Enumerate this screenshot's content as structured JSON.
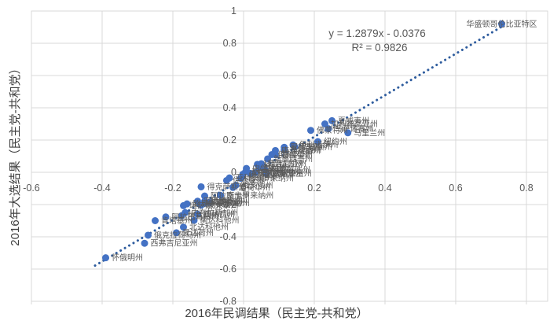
{
  "chart_data": {
    "type": "scatter",
    "title": "",
    "xlabel": "2016年民调结果（民主党-共和党）",
    "ylabel": "2016年大选结果（民主党-共和党）",
    "xlim": [
      -0.6,
      0.86
    ],
    "ylim": [
      -0.8,
      1.0
    ],
    "grid": true,
    "xticks": [
      "-0.6",
      "-0.4",
      "-0.2",
      "0",
      "0.2",
      "0.4",
      "0.6",
      "0.8"
    ],
    "yticks": [
      "1",
      "0.8",
      "0.6",
      "0.4",
      "0.2",
      "0",
      "-0.2",
      "-0.4",
      "-0.6",
      "-0.8"
    ],
    "trendline": {
      "style": "dotted",
      "slope": 1.2879,
      "intercept": -0.0376,
      "x_start": -0.42,
      "x_end": 0.732,
      "equation_label": "y = 1.2879x - 0.0376",
      "r2_label": "R² = 0.9826"
    },
    "series": [
      {
        "name": "states",
        "marker_color": "#4472C4",
        "points": [
          {
            "label": "华盛顿哥伦比亚特区",
            "x": 0.73,
            "y": 0.92,
            "label_position": "center"
          },
          {
            "label": "夏威夷州",
            "x": 0.25,
            "y": 0.32,
            "label_position": "right"
          },
          {
            "label": "加利福尼亚州",
            "x": 0.23,
            "y": 0.3,
            "label_position": "right"
          },
          {
            "label": "马萨诸塞州",
            "x": 0.24,
            "y": 0.27,
            "label_position": "right"
          },
          {
            "label": "佛蒙特州",
            "x": 0.19,
            "y": 0.26,
            "label_position": "right"
          },
          {
            "label": "马里兰州",
            "x": 0.295,
            "y": 0.245,
            "label_position": "right"
          },
          {
            "label": "纽约州",
            "x": 0.21,
            "y": 0.19,
            "label_position": "right"
          },
          {
            "label": "华盛顿州",
            "x": 0.145,
            "y": 0.157,
            "label_position": "right"
          },
          {
            "label": "伊利诺伊州",
            "x": 0.14,
            "y": 0.17,
            "label_position": "right"
          },
          {
            "label": "罗德岛州",
            "x": 0.115,
            "y": 0.155,
            "label_position": "right"
          },
          {
            "label": "新泽西州",
            "x": 0.115,
            "y": 0.14,
            "label_position": "right"
          },
          {
            "label": "康涅狄格州",
            "x": 0.09,
            "y": 0.135,
            "label_position": "right"
          },
          {
            "label": "特拉华州",
            "x": 0.09,
            "y": 0.11,
            "label_position": "right"
          },
          {
            "label": "俄勒冈州",
            "x": 0.08,
            "y": 0.11,
            "label_position": "right"
          },
          {
            "label": "新墨西哥州",
            "x": 0.068,
            "y": 0.083,
            "label_position": "right"
          },
          {
            "label": "弗吉尼亚州",
            "x": 0.05,
            "y": 0.053,
            "label_position": "right"
          },
          {
            "label": "科罗拉多州",
            "x": 0.039,
            "y": 0.049,
            "label_position": "right"
          },
          {
            "label": "缅因州",
            "x": 0.045,
            "y": 0.029,
            "label_position": "right"
          },
          {
            "label": "明尼苏达州",
            "x": 0.061,
            "y": 0.015,
            "label_position": "right"
          },
          {
            "label": "内华达州",
            "x": 0.008,
            "y": 0.024,
            "label_position": "right"
          },
          {
            "label": "新罕布什尔州",
            "x": 0.006,
            "y": 0.004,
            "label_position": "right"
          },
          {
            "label": "密歇根州",
            "x": 0.034,
            "y": -0.002,
            "label_position": "right"
          },
          {
            "label": "宾夕法尼亚州",
            "x": 0.019,
            "y": -0.007,
            "label_position": "right"
          },
          {
            "label": "威斯康星州",
            "x": 0.065,
            "y": -0.008,
            "label_position": "right"
          },
          {
            "label": "佛罗里达州",
            "x": -0.002,
            "y": -0.012,
            "label_position": "right"
          },
          {
            "label": "北卡罗来纳州",
            "x": -0.008,
            "y": -0.037,
            "label_position": "right"
          },
          {
            "label": "亚利桑那州",
            "x": -0.04,
            "y": -0.035,
            "label_position": "right"
          },
          {
            "label": "佐治亚州",
            "x": -0.048,
            "y": -0.051,
            "label_position": "right"
          },
          {
            "label": "俄亥俄州",
            "x": -0.022,
            "y": -0.081,
            "label_position": "right"
          },
          {
            "label": "爱荷华州",
            "x": -0.03,
            "y": -0.094,
            "label_position": "right"
          },
          {
            "label": "得克萨斯州",
            "x": -0.12,
            "y": -0.09,
            "label_position": "right"
          },
          {
            "label": "南卡罗来纳州",
            "x": -0.065,
            "y": -0.143,
            "label_position": "right"
          },
          {
            "label": "阿拉斯加州",
            "x": -0.11,
            "y": -0.147,
            "label_position": "right"
          },
          {
            "label": "密西西比州",
            "x": -0.13,
            "y": -0.179,
            "label_position": "right"
          },
          {
            "label": "犹他州",
            "x": -0.11,
            "y": -0.18,
            "label_position": "right"
          },
          {
            "label": "密苏里州",
            "x": -0.095,
            "y": -0.187,
            "label_position": "right"
          },
          {
            "label": "印第安纳州",
            "x": -0.11,
            "y": -0.191,
            "label_position": "right"
          },
          {
            "label": "路易斯安那州",
            "x": -0.16,
            "y": -0.196,
            "label_position": "right"
          },
          {
            "label": "蒙大拿州",
            "x": -0.12,
            "y": -0.204,
            "label_position": "right"
          },
          {
            "label": "堪萨斯州",
            "x": -0.17,
            "y": -0.207,
            "label_position": "right"
          },
          {
            "label": "内布拉斯加州",
            "x": -0.165,
            "y": -0.25,
            "label_position": "right"
          },
          {
            "label": "田纳西州",
            "x": -0.13,
            "y": -0.26,
            "label_position": "right"
          },
          {
            "label": "阿肯色州",
            "x": -0.175,
            "y": -0.269,
            "label_position": "right"
          },
          {
            "label": "阿拉巴马州",
            "x": -0.22,
            "y": -0.277,
            "label_position": "right"
          },
          {
            "label": "南达科他州",
            "x": -0.14,
            "y": -0.298,
            "label_position": "right"
          },
          {
            "label": "肯塔基州",
            "x": -0.25,
            "y": -0.3,
            "label_position": "right"
          },
          {
            "label": "北达科他州",
            "x": -0.17,
            "y": -0.34,
            "label_position": "right"
          },
          {
            "label": "爱达荷州",
            "x": -0.19,
            "y": -0.375,
            "label_position": "right"
          },
          {
            "label": "俄克拉荷马州",
            "x": -0.27,
            "y": -0.39,
            "label_position": "right"
          },
          {
            "label": "西弗吉尼亚州",
            "x": -0.28,
            "y": -0.44,
            "label_position": "right"
          },
          {
            "label": "怀俄明州",
            "x": -0.39,
            "y": -0.53,
            "label_position": "right"
          }
        ]
      }
    ],
    "legend": null
  },
  "colors": {
    "marker": "#4472C4",
    "trendline": "#2E5C9E",
    "gridline": "#D9D9D9",
    "plot_border": "#D9D9D9",
    "tick_text": "#595959",
    "data_label": "#595959",
    "axis_title": "#404040",
    "equation_text": "#595959",
    "background": "#FFFFFF"
  }
}
